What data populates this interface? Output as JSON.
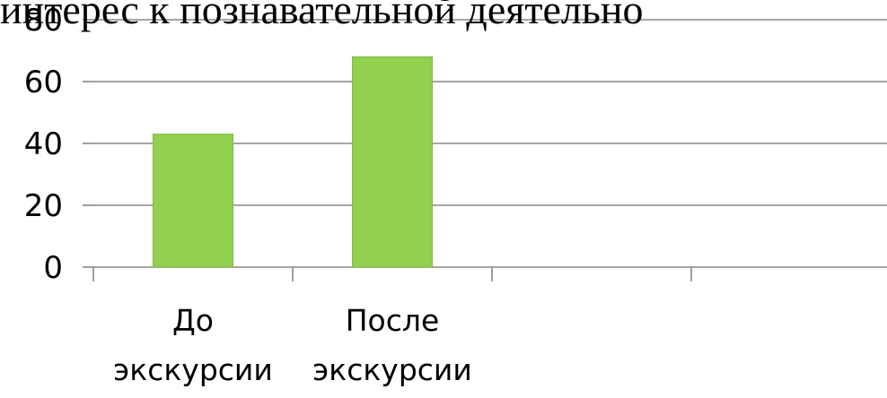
{
  "chart_data": {
    "type": "bar",
    "title": "интерес к познавательной деятельно",
    "categories": [
      [
        "До",
        "экскурсии"
      ],
      [
        "После",
        "экскурсии"
      ],
      [
        "",
        ""
      ],
      [
        "",
        ""
      ]
    ],
    "values": [
      43,
      68,
      null,
      null
    ],
    "ylim": [
      0,
      80
    ],
    "yticks": [
      0,
      20,
      40,
      60,
      80
    ],
    "xlabel": "",
    "ylabel": "",
    "grid": true,
    "bar_color": "#92d050",
    "bar_border_color": "#7fb841",
    "grid_color": "#878787",
    "axis_color": "#878787"
  }
}
